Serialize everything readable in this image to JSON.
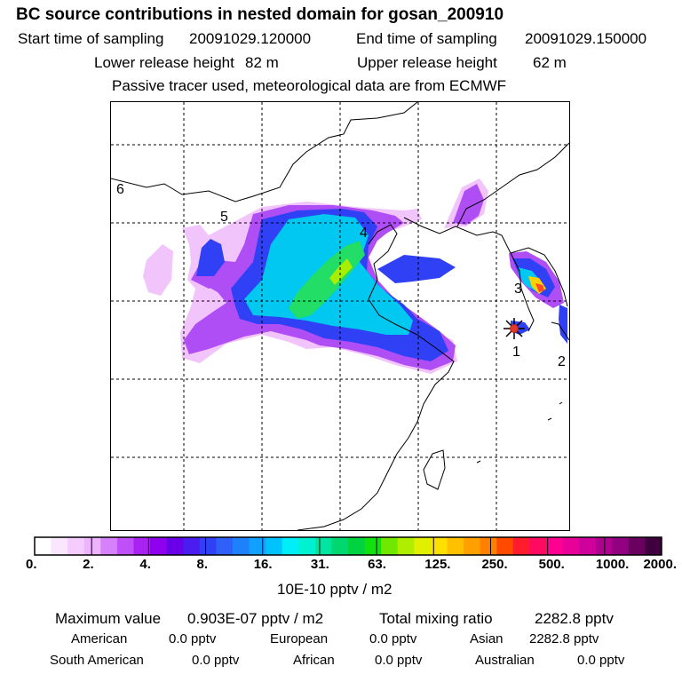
{
  "header": {
    "title": "BC  source contributions in nested domain for gosan_200910",
    "start_label": "Start time of sampling",
    "start_value": "20091029.120000",
    "end_label": "End time of sampling",
    "end_value": "20091029.150000",
    "lower_label": "Lower release height",
    "lower_value": "82 m",
    "upper_label": "Upper release height",
    "upper_value": "62 m",
    "note": "Passive tracer used, meteorological data are from ECMWF"
  },
  "map": {
    "region_labels": [
      "1",
      "2",
      "3",
      "4",
      "5",
      "6"
    ],
    "receptor_marker": "star-marker"
  },
  "colorbar": {
    "ticks": [
      "0.",
      "2.",
      "4.",
      "8.",
      "16.",
      "31.",
      "63.",
      "125.",
      "250.",
      "500.",
      "1000.",
      "2000."
    ],
    "colors": [
      "#ffffff",
      "#fbe6ff",
      "#f5ccfe",
      "#eeb2fe",
      "#d680fa",
      "#c04ff7",
      "#aa22f2",
      "#8f00ee",
      "#6a00ea",
      "#4b1cf0",
      "#3040f5",
      "#2f60f8",
      "#1e80fb",
      "#10a0fd",
      "#00c2fd",
      "#00eef8",
      "#00f0d2",
      "#00e6a0",
      "#00d770",
      "#00d240",
      "#14e010",
      "#70e800",
      "#b0ee00",
      "#e0f000",
      "#ffdf00",
      "#ffc000",
      "#ffa000",
      "#ff8000",
      "#ff4a00",
      "#ff1c2c",
      "#ff0a60",
      "#ff0090",
      "#e80098",
      "#d0009c",
      "#b00090",
      "#900080",
      "#6a0060",
      "#400040"
    ],
    "units": "10E-10 pptv / m2"
  },
  "stats": {
    "max_label": "Maximum value",
    "max_value": "0.903E-07 pptv / m2",
    "total_label": "Total mixing ratio",
    "total_value": "2282.8 pptv",
    "regions": [
      {
        "name": "American",
        "value": "0.0 pptv"
      },
      {
        "name": "European",
        "value": "0.0 pptv"
      },
      {
        "name": "Asian",
        "value": "2282.8 pptv"
      },
      {
        "name": "South American",
        "value": "0.0 pptv"
      },
      {
        "name": "African",
        "value": "0.0 pptv"
      },
      {
        "name": "Australian",
        "value": "0.0 pptv"
      }
    ]
  }
}
